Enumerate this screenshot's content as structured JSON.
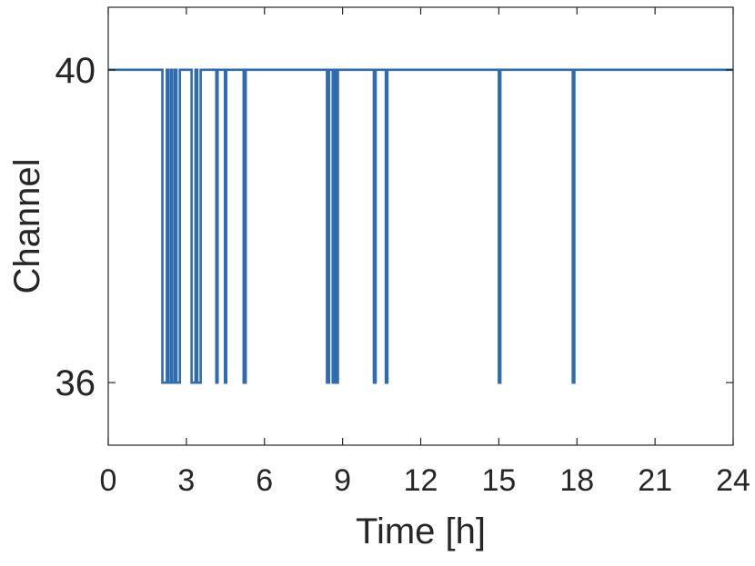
{
  "chart_data": {
    "type": "line",
    "title": "",
    "xlabel": "Time [h]",
    "ylabel": "Channel",
    "xlim": [
      0,
      24
    ],
    "ylim": [
      35.2,
      40.8
    ],
    "x_ticks": [
      "0",
      "3",
      "6",
      "9",
      "12",
      "15",
      "18",
      "21",
      "24"
    ],
    "y_ticks": [
      "36",
      "40"
    ],
    "grid": false,
    "series": [
      {
        "color": "#2e6bb0",
        "baseline_channel": 40,
        "dip_channel": 36,
        "dips": [
          [
            2.08,
            2.25
          ],
          [
            2.3,
            2.4
          ],
          [
            2.45,
            2.55
          ],
          [
            2.62,
            2.75
          ],
          [
            3.2,
            3.35
          ],
          [
            3.42,
            3.55
          ],
          [
            4.15,
            4.2
          ],
          [
            4.48,
            4.53
          ],
          [
            5.2,
            5.28
          ],
          [
            8.4,
            8.48
          ],
          [
            8.62,
            8.7
          ],
          [
            8.75,
            8.82
          ],
          [
            10.2,
            10.27
          ],
          [
            10.66,
            10.72
          ],
          [
            15.0,
            15.06
          ],
          [
            17.84,
            17.9
          ]
        ]
      }
    ]
  }
}
